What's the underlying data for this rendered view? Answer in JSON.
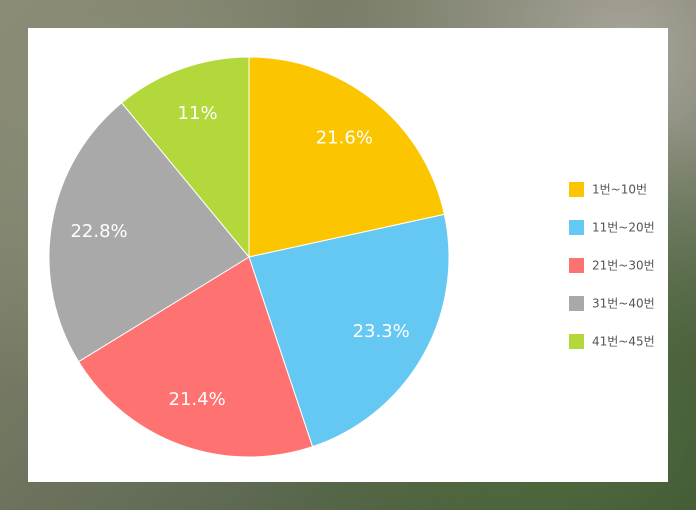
{
  "chart_data": {
    "type": "pie",
    "categories": [
      "1번~10번",
      "11번~20번",
      "21번~30번",
      "31번~40번",
      "41번~45번"
    ],
    "values": [
      21.6,
      23.3,
      21.4,
      22.8,
      11
    ],
    "value_labels": [
      "21.6%",
      "23.3%",
      "21.4%",
      "22.8%",
      "11%"
    ],
    "colors": [
      "#fbc500",
      "#64c8f2",
      "#ff7272",
      "#a9a9a9",
      "#b2d83c"
    ],
    "legend": "right"
  }
}
